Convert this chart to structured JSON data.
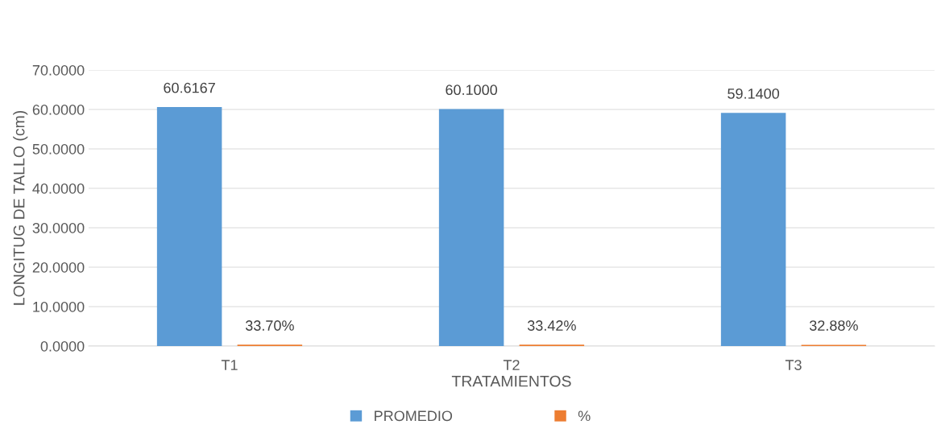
{
  "chart_data": {
    "type": "bar",
    "xlabel": "TRATAMIENTOS",
    "ylabel": "LONGITUG DE TALLO (cm)",
    "categories": [
      "T1",
      "T2",
      "T3"
    ],
    "series": [
      {
        "name": "PROMEDIO",
        "color": "#5b9bd5",
        "values": [
          60.6167,
          60.1,
          59.14
        ],
        "value_labels": [
          "60.6167",
          "60.1000",
          "59.1400"
        ]
      },
      {
        "name": "%",
        "color": "#ed7d31",
        "values": [
          0.337,
          0.3342,
          0.3288
        ],
        "value_labels": [
          "33.70%",
          "33.42%",
          "32.88%"
        ]
      }
    ],
    "ylim": [
      0,
      70
    ],
    "yticks": [
      {
        "value": 0,
        "label": "0.0000"
      },
      {
        "value": 10,
        "label": "10.0000"
      },
      {
        "value": 20,
        "label": "20.0000"
      },
      {
        "value": 30,
        "label": "30.0000"
      },
      {
        "value": 40,
        "label": "40.0000"
      },
      {
        "value": 50,
        "label": "50.0000"
      },
      {
        "value": 60,
        "label": "60.0000"
      },
      {
        "value": 70,
        "label": "70.0000"
      }
    ],
    "grid": "y",
    "legend": "bottom"
  }
}
